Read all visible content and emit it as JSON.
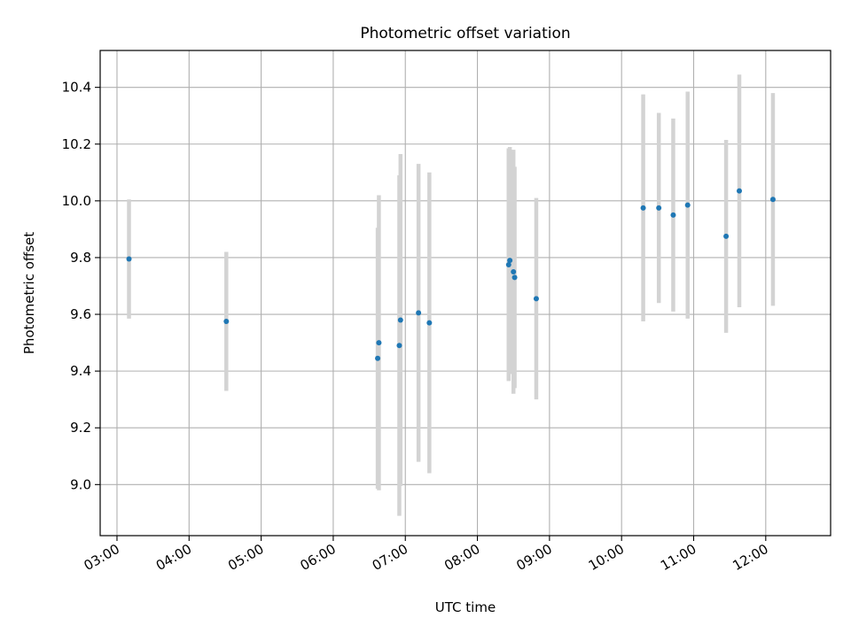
{
  "chart_data": {
    "type": "scatter",
    "title": "Photometric offset variation",
    "xlabel": "UTC time",
    "ylabel": "Photometric offset",
    "xlim": [
      "02:46",
      "12:54"
    ],
    "ylim": [
      8.82,
      10.53
    ],
    "x_ticks": [
      "03:00",
      "04:00",
      "05:00",
      "06:00",
      "07:00",
      "08:00",
      "09:00",
      "10:00",
      "11:00",
      "12:00"
    ],
    "y_ticks": [
      9.0,
      9.2,
      9.4,
      9.6,
      9.8,
      10.0,
      10.2,
      10.4
    ],
    "grid": true,
    "point_color": "#1f77b4",
    "errorbar_color": "#d3d3d3",
    "series": [
      {
        "points": [
          {
            "x": "03:10",
            "y": 9.795,
            "err": 0.21
          },
          {
            "x": "04:31",
            "y": 9.575,
            "err": 0.245
          },
          {
            "x": "06:37",
            "y": 9.445,
            "err": 0.46
          },
          {
            "x": "06:38",
            "y": 9.5,
            "err": 0.52
          },
          {
            "x": "06:55",
            "y": 9.49,
            "err": 0.6
          },
          {
            "x": "06:56",
            "y": 9.58,
            "err": 0.585
          },
          {
            "x": "07:11",
            "y": 9.605,
            "err": 0.525
          },
          {
            "x": "07:20",
            "y": 9.57,
            "err": 0.53
          },
          {
            "x": "08:26",
            "y": 9.775,
            "err": 0.41
          },
          {
            "x": "08:27",
            "y": 9.79,
            "err": 0.4
          },
          {
            "x": "08:30",
            "y": 9.75,
            "err": 0.43
          },
          {
            "x": "08:31",
            "y": 9.73,
            "err": 0.39
          },
          {
            "x": "08:49",
            "y": 9.655,
            "err": 0.355
          },
          {
            "x": "10:18",
            "y": 9.975,
            "err": 0.4
          },
          {
            "x": "10:31",
            "y": 9.975,
            "err": 0.335
          },
          {
            "x": "10:43",
            "y": 9.95,
            "err": 0.34
          },
          {
            "x": "10:55",
            "y": 9.985,
            "err": 0.4
          },
          {
            "x": "11:27",
            "y": 9.875,
            "err": 0.34
          },
          {
            "x": "11:38",
            "y": 10.035,
            "err": 0.41
          },
          {
            "x": "12:06",
            "y": 10.005,
            "err": 0.375
          }
        ]
      }
    ]
  }
}
